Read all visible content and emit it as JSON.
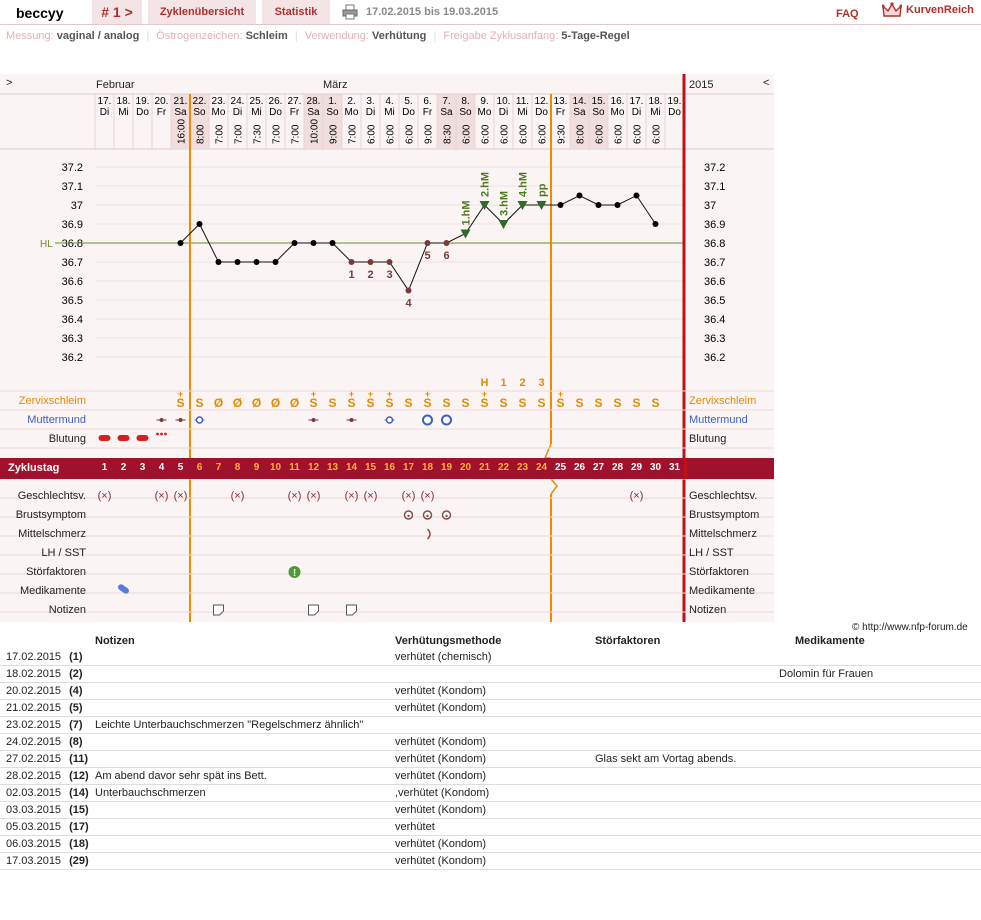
{
  "header": {
    "user": "beccyy",
    "cycle_label": "# 1 >",
    "tab_cycles": "Zyklenübersicht",
    "tab_stats": "Statistik",
    "date_range": "17.02.2015 bis 19.03.2015",
    "faq": "FAQ",
    "brand": "KurvenReich"
  },
  "meta": [
    {
      "key": "Messung:",
      "value": "vaginal / analog"
    },
    {
      "key": "Östrogenzeichen:",
      "value": "Schleim"
    },
    {
      "key": "Verwendung:",
      "value": "Verhütung"
    },
    {
      "key": "Freigabe Zyklusanfang:",
      "value": "5-Tage-Regel"
    }
  ],
  "colors": {
    "accent": "#a0112c",
    "orange": "#f08a00",
    "green": "#4f7a20",
    "curve": "#111111",
    "hl": "#6a8a2a",
    "mucus": "#e58a00",
    "mumu": "#3d5fbf"
  },
  "chart": {
    "nav_left": ">",
    "nav_right": "<",
    "year": "2015",
    "month_feb": "Februar",
    "month_mar": "März",
    "hl_label": "HL",
    "days": [
      {
        "d": "17.",
        "w": "Di",
        "t": ""
      },
      {
        "d": "18.",
        "w": "Mi",
        "t": ""
      },
      {
        "d": "19.",
        "w": "Do",
        "t": ""
      },
      {
        "d": "20.",
        "w": "Fr",
        "t": ""
      },
      {
        "d": "21.",
        "w": "Sa",
        "t": "16:00"
      },
      {
        "d": "22.",
        "w": "So",
        "t": "8:00"
      },
      {
        "d": "23.",
        "w": "Mo",
        "t": "7:00"
      },
      {
        "d": "24.",
        "w": "Di",
        "t": "7:00"
      },
      {
        "d": "25.",
        "w": "Mi",
        "t": "7:30"
      },
      {
        "d": "26.",
        "w": "Do",
        "t": "7:00"
      },
      {
        "d": "27.",
        "w": "Fr",
        "t": "7:00"
      },
      {
        "d": "28.",
        "w": "Sa",
        "t": "10:00"
      },
      {
        "d": "1.",
        "w": "So",
        "t": "9:00"
      },
      {
        "d": "2.",
        "w": "Mo",
        "t": "7:00"
      },
      {
        "d": "3.",
        "w": "Di",
        "t": "6:00"
      },
      {
        "d": "4.",
        "w": "Mi",
        "t": "6:00"
      },
      {
        "d": "5.",
        "w": "Do",
        "t": "6:00"
      },
      {
        "d": "6.",
        "w": "Fr",
        "t": "9:00"
      },
      {
        "d": "7.",
        "w": "Sa",
        "t": "8:30"
      },
      {
        "d": "8.",
        "w": "So",
        "t": "6:00"
      },
      {
        "d": "9.",
        "w": "Mo",
        "t": "6:00"
      },
      {
        "d": "10.",
        "w": "Di",
        "t": "6:00"
      },
      {
        "d": "11.",
        "w": "Mi",
        "t": "6:00"
      },
      {
        "d": "12.",
        "w": "Do",
        "t": "6:00"
      },
      {
        "d": "13.",
        "w": "Fr",
        "t": "9:30"
      },
      {
        "d": "14.",
        "w": "Sa",
        "t": "8:00"
      },
      {
        "d": "15.",
        "w": "So",
        "t": "6:00"
      },
      {
        "d": "16.",
        "w": "Mo",
        "t": "6:00"
      },
      {
        "d": "17.",
        "w": "Di",
        "t": "6:00"
      },
      {
        "d": "18.",
        "w": "Mi",
        "t": "6:00"
      },
      {
        "d": "19.",
        "w": "Do",
        "t": ""
      }
    ],
    "ticks": [
      "37.2",
      "37.1",
      "37",
      "36.9",
      "36.8",
      "36.7",
      "36.6",
      "36.5",
      "36.4",
      "36.3",
      "36.2"
    ],
    "temps": [
      null,
      null,
      null,
      null,
      36.8,
      36.9,
      36.7,
      36.7,
      36.7,
      36.7,
      36.8,
      36.8,
      36.8,
      36.7,
      36.7,
      36.7,
      36.55,
      36.8,
      36.8,
      36.85,
      37.0,
      36.9,
      37.0,
      37.0,
      37.0,
      37.05,
      37.0,
      37.0,
      37.05,
      36.9,
      null
    ],
    "low_labels": [
      {
        "day": 14,
        "text": "1"
      },
      {
        "day": 15,
        "text": "2"
      },
      {
        "day": 16,
        "text": "3"
      },
      {
        "day": 17,
        "text": "4"
      },
      {
        "day": 18,
        "text": "5"
      },
      {
        "day": 19,
        "text": "6"
      }
    ],
    "high_labels": [
      {
        "day": 20,
        "text": "1.hM"
      },
      {
        "day": 21,
        "text": "2.hM"
      },
      {
        "day": 22,
        "text": "3.hM"
      },
      {
        "day": 23,
        "text": "4.hM"
      },
      {
        "day": 24,
        "text": "pp"
      }
    ],
    "mucus_markers": [
      {
        "day": 21,
        "text": "H"
      },
      {
        "day": 22,
        "text": "1"
      },
      {
        "day": 23,
        "text": "2"
      },
      {
        "day": 24,
        "text": "3"
      }
    ],
    "mucus": [
      "",
      "",
      "",
      "",
      "S+",
      "S",
      "Ø",
      "Ø",
      "Ø",
      "Ø",
      "Ø",
      "S+",
      "S",
      "S+",
      "S+",
      "S+",
      "S",
      "S+",
      "S",
      "S",
      "S+",
      "S",
      "S",
      "S",
      "S+",
      "S",
      "S",
      "S",
      "S",
      "S",
      ""
    ],
    "cycle_days": [
      "1",
      "2",
      "3",
      "4",
      "5",
      "6",
      "7",
      "8",
      "9",
      "10",
      "11",
      "12",
      "13",
      "14",
      "15",
      "16",
      "17",
      "18",
      "19",
      "20",
      "21",
      "22",
      "23",
      "24",
      "25",
      "26",
      "27",
      "28",
      "29",
      "30",
      "31"
    ],
    "rows": {
      "zervix": "Zervixschleim",
      "mumu": "Muttermund",
      "blutung": "Blutung",
      "zyklustag": "Zyklustag",
      "gv": "Geschlechtsv.",
      "brust": "Brustsymptom",
      "mittel": "Mittelschmerz",
      "lh": "LH / SST",
      "stoer": "Störfaktoren",
      "medi": "Medikamente",
      "notiz": "Notizen"
    },
    "bleeding_days": [
      1,
      2,
      3
    ],
    "spotting_days": [
      4
    ],
    "gv_days": [
      1,
      4,
      5,
      8,
      11,
      12,
      14,
      15,
      17,
      18,
      29
    ],
    "breast_days": [
      17,
      18,
      19
    ],
    "midpain_days": [
      18
    ],
    "stoer_days": [
      11
    ],
    "medi_days": [
      2
    ],
    "note_days": [
      7,
      12,
      14
    ],
    "mumu_days": [
      {
        "day": 4,
        "k": "dot"
      },
      {
        "day": 5,
        "k": "dot"
      },
      {
        "day": 6,
        "k": "ring"
      },
      {
        "day": 12,
        "k": "dot"
      },
      {
        "day": 14,
        "k": "dot"
      },
      {
        "day": 16,
        "k": "ring"
      },
      {
        "day": 18,
        "k": "bigring"
      },
      {
        "day": 19,
        "k": "bigring"
      }
    ]
  },
  "copyright": "© http://www.nfp-forum.de",
  "notes_table": {
    "headers": [
      "Notizen",
      "Verhütungsmethode",
      "Störfaktoren",
      "Medikamente"
    ],
    "rows": [
      {
        "date": "17.02.2015",
        "num": "(1)",
        "note": "",
        "method": "verhütet (chemisch)",
        "stoer": "",
        "medi": ""
      },
      {
        "date": "18.02.2015",
        "num": "(2)",
        "note": "",
        "method": "",
        "stoer": "",
        "medi": "Dolomin für Frauen"
      },
      {
        "date": "20.02.2015",
        "num": "(4)",
        "note": "",
        "method": "verhütet (Kondom)",
        "stoer": "",
        "medi": ""
      },
      {
        "date": "21.02.2015",
        "num": "(5)",
        "note": "",
        "method": "verhütet (Kondom)",
        "stoer": "",
        "medi": ""
      },
      {
        "date": "23.02.2015",
        "num": "(7)",
        "note": "Leichte Unterbauchschmerzen \"Regelschmerz ähnlich\"",
        "method": "",
        "stoer": "",
        "medi": ""
      },
      {
        "date": "24.02.2015",
        "num": "(8)",
        "note": "",
        "method": "verhütet (Kondom)",
        "stoer": "",
        "medi": ""
      },
      {
        "date": "27.02.2015",
        "num": "(11)",
        "note": "",
        "method": "verhütet (Kondom)",
        "stoer": "Glas sekt am Vortag abends.",
        "medi": ""
      },
      {
        "date": "28.02.2015",
        "num": "(12)",
        "note": "Am abend davor sehr spät ins Bett.",
        "method": "verhütet (Kondom)",
        "stoer": "",
        "medi": ""
      },
      {
        "date": "02.03.2015",
        "num": "(14)",
        "note": "Unterbauchschmerzen",
        "method": ",verhütet (Kondom)",
        "stoer": "",
        "medi": ""
      },
      {
        "date": "03.03.2015",
        "num": "(15)",
        "note": "",
        "method": "verhütet (Kondom)",
        "stoer": "",
        "medi": ""
      },
      {
        "date": "05.03.2015",
        "num": "(17)",
        "note": "",
        "method": "verhütet",
        "stoer": "",
        "medi": ""
      },
      {
        "date": "06.03.2015",
        "num": "(18)",
        "note": "",
        "method": "verhütet (Kondom)",
        "stoer": "",
        "medi": ""
      },
      {
        "date": "17.03.2015",
        "num": "(29)",
        "note": "",
        "method": "verhütet (Kondom)",
        "stoer": "",
        "medi": ""
      }
    ]
  }
}
